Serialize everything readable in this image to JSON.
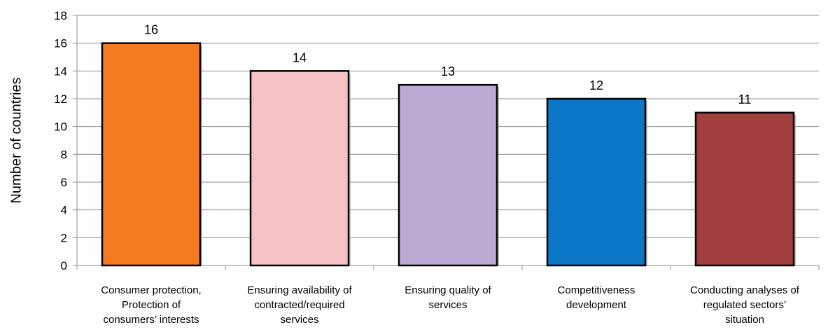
{
  "chart_data": {
    "type": "bar",
    "ylabel": "Number of countries",
    "xlabel": "",
    "ylim": [
      0,
      18
    ],
    "ytick_step": 2,
    "grid": true,
    "categories": [
      [
        "Consumer protection,",
        "Protection of",
        "consumers’ interests"
      ],
      [
        "Ensuring availability of",
        "contracted/required",
        "services"
      ],
      [
        "Ensuring quality of",
        "services"
      ],
      [
        "Competitiveness",
        "development"
      ],
      [
        "Conducting analyses of",
        "regulated sectors’",
        "situation"
      ]
    ],
    "values": [
      16,
      14,
      13,
      12,
      11
    ],
    "colors": [
      "#F47B20",
      "#F4C2C2",
      "#BCA9D4",
      "#0A77C7",
      "#A23F3F"
    ]
  }
}
